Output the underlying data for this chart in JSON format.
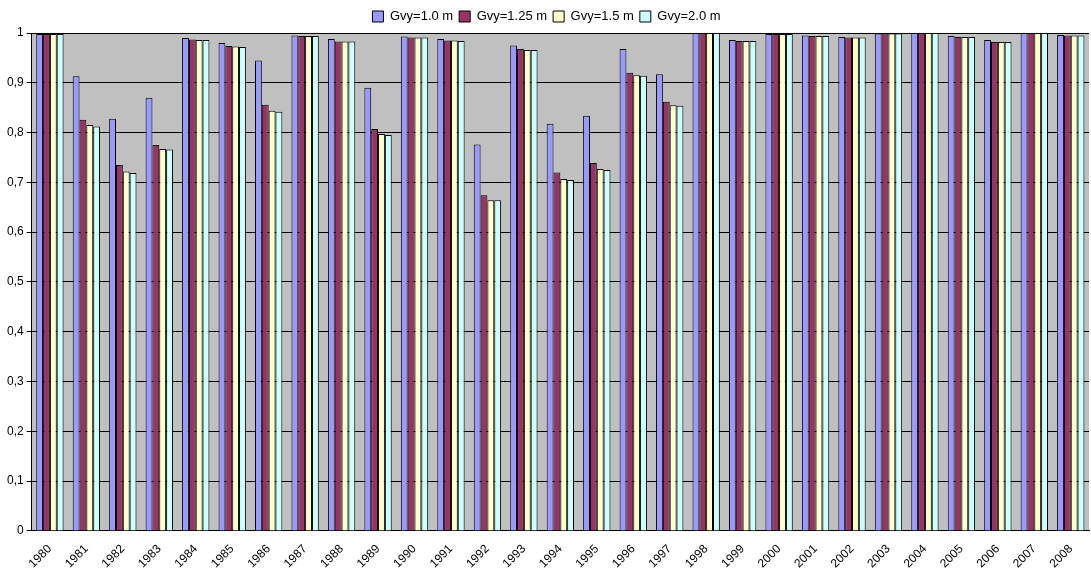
{
  "chart_data": {
    "type": "bar",
    "categories": [
      "1980",
      "1981",
      "1982",
      "1983",
      "1984",
      "1985",
      "1986",
      "1987",
      "1988",
      "1989",
      "1990",
      "1991",
      "1992",
      "1993",
      "1994",
      "1995",
      "1996",
      "1997",
      "1998",
      "1999",
      "2000",
      "2001",
      "2002",
      "2003",
      "2004",
      "2005",
      "2006",
      "2007",
      "2008"
    ],
    "series": [
      {
        "name": "Gvy=1.0 m",
        "color": "#9999ff",
        "values": [
          0.998,
          0.913,
          0.828,
          0.87,
          0.99,
          0.98,
          0.945,
          0.995,
          0.988,
          0.89,
          0.993,
          0.988,
          0.776,
          0.975,
          0.818,
          0.834,
          0.968,
          0.917,
          1,
          0.986,
          0.998,
          0.995,
          0.992,
          0.999,
          1,
          0.994,
          0.986,
          1,
          0.996
        ]
      },
      {
        "name": "Gvy=1.25 m",
        "color": "#993366",
        "values": [
          0.998,
          0.826,
          0.735,
          0.775,
          0.987,
          0.974,
          0.856,
          0.994,
          0.983,
          0.807,
          0.991,
          0.985,
          0.674,
          0.968,
          0.72,
          0.739,
          0.92,
          0.862,
          1,
          0.984,
          0.998,
          0.994,
          0.991,
          0.999,
          1,
          0.992,
          0.982,
          1,
          0.995
        ]
      },
      {
        "name": "Gvy=1.5 m",
        "color": "#ffffcc",
        "values": [
          0.998,
          0.815,
          0.722,
          0.767,
          0.986,
          0.973,
          0.844,
          0.994,
          0.983,
          0.797,
          0.991,
          0.985,
          0.664,
          0.966,
          0.707,
          0.727,
          0.915,
          0.855,
          1,
          0.984,
          0.998,
          0.994,
          0.991,
          0.999,
          1,
          0.992,
          0.982,
          1,
          0.995
        ]
      },
      {
        "name": "Gvy=2.0 m",
        "color": "#ccffff",
        "values": [
          0.998,
          0.812,
          0.719,
          0.766,
          0.986,
          0.972,
          0.842,
          0.994,
          0.983,
          0.795,
          0.991,
          0.984,
          0.664,
          0.966,
          0.705,
          0.725,
          0.914,
          0.854,
          1,
          0.984,
          0.998,
          0.994,
          0.991,
          0.999,
          1,
          0.992,
          0.982,
          1,
          0.995
        ]
      }
    ],
    "ylim": [
      0,
      1
    ],
    "yticks": [
      0,
      {
        "value": 0.1,
        "label": "0,1"
      },
      {
        "value": 0.2,
        "label": "0,2"
      },
      {
        "value": 0.3,
        "label": "0,3"
      },
      {
        "value": 0.4,
        "label": "0,4"
      },
      {
        "value": 0.5,
        "label": "0,5"
      },
      {
        "value": 0.6,
        "label": "0,6"
      },
      {
        "value": 0.7,
        "label": "0,7"
      },
      {
        "value": 0.8,
        "label": "0,8"
      },
      {
        "value": 0.9,
        "label": "0,9"
      },
      1
    ],
    "grid": "y",
    "legend": "top"
  }
}
